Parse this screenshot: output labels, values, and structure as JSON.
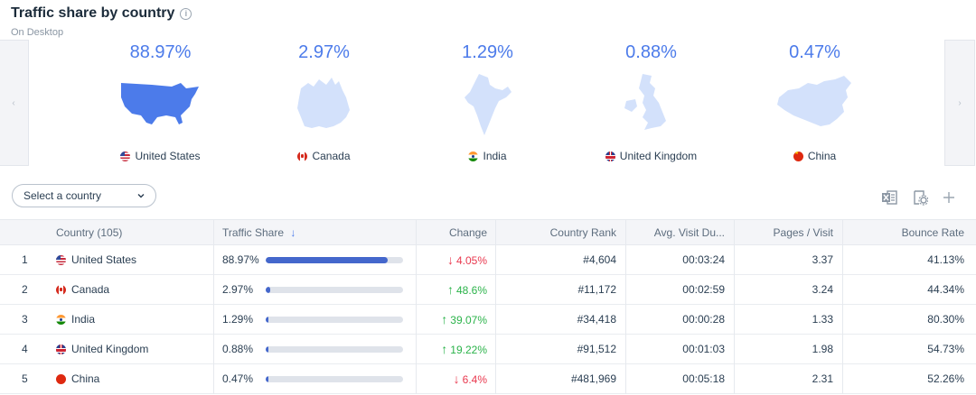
{
  "header": {
    "title": "Traffic share by country",
    "subtitle": "On Desktop"
  },
  "cards": [
    {
      "share": "88.97%",
      "country": "United States",
      "flag": "us",
      "highlight": true
    },
    {
      "share": "2.97%",
      "country": "Canada",
      "flag": "ca",
      "highlight": false
    },
    {
      "share": "1.29%",
      "country": "India",
      "flag": "in",
      "highlight": false
    },
    {
      "share": "0.88%",
      "country": "United Kingdom",
      "flag": "uk",
      "highlight": false
    },
    {
      "share": "0.47%",
      "country": "China",
      "flag": "cn",
      "highlight": false
    }
  ],
  "controls": {
    "select_country_label": "Select a country"
  },
  "colors": {
    "accent": "#4c7bea",
    "bar": "#4467cc",
    "up": "#2bb34a",
    "down": "#e9394f"
  },
  "table": {
    "columns": [
      "Country (105)",
      "Traffic Share",
      "Change",
      "Country Rank",
      "Avg. Visit Du...",
      "Pages / Visit",
      "Bounce Rate"
    ],
    "rows": [
      {
        "rank": "1",
        "country": "United States",
        "flag": "us",
        "share": "88.97%",
        "share_value": 88.97,
        "change": "4.05%",
        "dir": "down",
        "country_rank": "#4,604",
        "avg_visit": "00:03:24",
        "pages": "3.37",
        "bounce": "41.13%"
      },
      {
        "rank": "2",
        "country": "Canada",
        "flag": "ca",
        "share": "2.97%",
        "share_value": 2.97,
        "change": "48.6%",
        "dir": "up",
        "country_rank": "#11,172",
        "avg_visit": "00:02:59",
        "pages": "3.24",
        "bounce": "44.34%"
      },
      {
        "rank": "3",
        "country": "India",
        "flag": "in",
        "share": "1.29%",
        "share_value": 1.29,
        "change": "39.07%",
        "dir": "up",
        "country_rank": "#34,418",
        "avg_visit": "00:00:28",
        "pages": "1.33",
        "bounce": "80.30%"
      },
      {
        "rank": "4",
        "country": "United Kingdom",
        "flag": "uk",
        "share": "0.88%",
        "share_value": 0.88,
        "change": "19.22%",
        "dir": "up",
        "country_rank": "#91,512",
        "avg_visit": "00:01:03",
        "pages": "1.98",
        "bounce": "54.73%"
      },
      {
        "rank": "5",
        "country": "China",
        "flag": "cn",
        "share": "0.47%",
        "share_value": 0.47,
        "change": "6.4%",
        "dir": "down",
        "country_rank": "#481,969",
        "avg_visit": "00:05:18",
        "pages": "2.31",
        "bounce": "52.26%"
      }
    ]
  }
}
